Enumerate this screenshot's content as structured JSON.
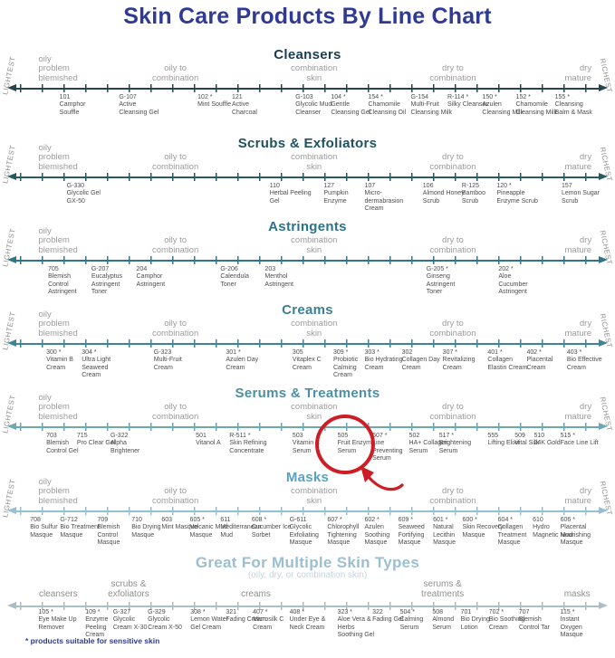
{
  "title": "Skin Care Products By Line Chart",
  "footnote": "* products suitable for sensitive skin",
  "side_labels": {
    "left": "LIGHTEST",
    "right": "RICHEST"
  },
  "skin_zone_labels": [
    {
      "lines": [
        "oily",
        "problem",
        "blemished"
      ],
      "x": 5.2,
      "align": "left"
    },
    {
      "lines": [
        "oily to",
        "combination"
      ],
      "x": 28.0,
      "align": "center"
    },
    {
      "lines": [
        "combination",
        "skin"
      ],
      "x": 51.1,
      "align": "center"
    },
    {
      "lines": [
        "dry to",
        "combination"
      ],
      "x": 74.2,
      "align": "center"
    },
    {
      "lines": [
        "dry",
        "mature"
      ],
      "x": 97.3,
      "align": "right"
    }
  ],
  "annotation": {
    "shape": "circle-with-arrow",
    "target_code": "505",
    "target_name": "Fruit Enzyme Serum",
    "color": "#ce1d24"
  },
  "sections": [
    {
      "heading": "Cleansers",
      "heading_color": "#1a3c50",
      "axis_color": "#24454f",
      "zone_labels_shared": true,
      "has_side_labels": true,
      "products": [
        {
          "code": "101",
          "name": "Camphor Souffle",
          "x": 8.7
        },
        {
          "code": "G-107",
          "name": "Active Cleansing Gel",
          "x": 18.6
        },
        {
          "code": "102 *",
          "name": "Mint Souffle",
          "x": 31.7
        },
        {
          "code": "121",
          "name": "Active Charcoal",
          "x": 37.4
        },
        {
          "code": "G-103",
          "name": "Glycolic Mud Cleanser",
          "x": 48.0
        },
        {
          "code": "104 *",
          "name": "Gentle Cleansing Gel",
          "x": 53.9
        },
        {
          "code": "154 *",
          "name": "Chamomile Cleansing Oil",
          "x": 60.1
        },
        {
          "code": "G-154",
          "name": "Multi-Fruit Cleansing Milk",
          "x": 67.2
        },
        {
          "code": "R-114 *",
          "name": "Silky Cleanser",
          "x": 73.3
        },
        {
          "code": "150 *",
          "name": "Azulen Cleansing Milk",
          "x": 79.1
        },
        {
          "code": "152 *",
          "name": "Chamomile Cleansing Milk",
          "x": 84.7
        },
        {
          "code": "155 *",
          "name": "Cleansing Balm & Mask",
          "x": 91.2
        }
      ]
    },
    {
      "heading": "Scrubs & Exfoliators",
      "heading_color": "#1f5260",
      "axis_color": "#275a63",
      "zone_labels_shared": true,
      "has_side_labels": true,
      "products": [
        {
          "code": "G-330",
          "name": "Glycolic Gel GX-50",
          "x": 9.9
        },
        {
          "code": "110",
          "name": "Herbal Peeling Gel",
          "x": 43.7
        },
        {
          "code": "127",
          "name": "Pumpkin Enzyme",
          "x": 52.7
        },
        {
          "code": "107",
          "name": "Micro-dermabrasion Cream",
          "x": 59.5
        },
        {
          "code": "106",
          "name": "Almond Honey Scrub",
          "x": 69.2
        },
        {
          "code": "R-125",
          "name": "Bamboo Scrub",
          "x": 75.7
        },
        {
          "code": "120 *",
          "name": "Pineapple Enzyme Scrub",
          "x": 81.5
        },
        {
          "code": "157",
          "name": "Lemon Sugar Scrub",
          "x": 92.3
        }
      ]
    },
    {
      "heading": "Astringents",
      "heading_color": "#2b7487",
      "axis_color": "#2f7487",
      "zone_labels_shared": true,
      "has_side_labels": true,
      "products": [
        {
          "code": "705",
          "name": "Blemish Control Astringent",
          "x": 6.8
        },
        {
          "code": "G-207",
          "name": "Eucalyptus Astringent Toner",
          "x": 14.0
        },
        {
          "code": "204",
          "name": "Camphor Astringent",
          "x": 21.5
        },
        {
          "code": "G-206",
          "name": "Calendula Toner",
          "x": 35.5
        },
        {
          "code": "203",
          "name": "Menthol Astringent",
          "x": 42.9
        },
        {
          "code": "G-205 *",
          "name": "Ginseng Astringent Toner",
          "x": 69.8
        },
        {
          "code": "202 *",
          "name": "Aloe Cucumber Astringent",
          "x": 81.8
        }
      ]
    },
    {
      "heading": "Creams",
      "heading_color": "#3b8094",
      "axis_color": "#3f8496",
      "zone_labels_shared": true,
      "has_side_labels": true,
      "products": [
        {
          "code": "300 *",
          "name": "Vitamin B Cream",
          "x": 6.5
        },
        {
          "code": "304 *",
          "name": "Ultra Light Seaweed Cream",
          "x": 12.4
        },
        {
          "code": "G-323",
          "name": "Multi-Fruit Cream",
          "x": 24.4
        },
        {
          "code": "301 *",
          "name": "Azulen Day Cream",
          "x": 36.4
        },
        {
          "code": "305",
          "name": "Vitaplex C Cream",
          "x": 47.5
        },
        {
          "code": "309 *",
          "name": "Probiotic Calming Cream",
          "x": 54.3
        },
        {
          "code": "303 *",
          "name": "Bio Hydrating Cream",
          "x": 59.5
        },
        {
          "code": "302",
          "name": "Collagen Day Cream",
          "x": 65.7
        },
        {
          "code": "307 *",
          "name": "Revitalizing Cream",
          "x": 72.5
        },
        {
          "code": "401 *",
          "name": "Collagen Elastin Cream",
          "x": 80.0
        },
        {
          "code": "402 *",
          "name": "Placental Cream",
          "x": 86.5
        },
        {
          "code": "403 *",
          "name": "Bio Effective Cream",
          "x": 93.2
        }
      ]
    },
    {
      "heading": "Serums & Treatments",
      "heading_color": "#4d90a2",
      "axis_color": "#6aa9b4",
      "zone_labels_shared": true,
      "has_side_labels": true,
      "products": [
        {
          "code": "703",
          "name": "Blemish Control Gel",
          "x": 6.5
        },
        {
          "code": "715",
          "name": "Pro Clear Gel",
          "x": 11.6
        },
        {
          "code": "G-322",
          "name": "Alpha Brightener",
          "x": 17.2
        },
        {
          "code": "501",
          "name": "Vitanol A",
          "x": 31.4
        },
        {
          "code": "R-511 *",
          "name": "Skin Refining Concentrate",
          "x": 37.0
        },
        {
          "code": "503",
          "name": "Vitamin C Serum",
          "x": 47.5
        },
        {
          "code": "505",
          "name": "Fruit Enzyme Serum",
          "x": 55.0
        },
        {
          "code": "507 *",
          "name": "Line Preventing Serum",
          "x": 60.8
        },
        {
          "code": "502",
          "name": "HA+ Collagen Serum",
          "x": 66.9
        },
        {
          "code": "517 *",
          "name": "Brightening Serum",
          "x": 71.9
        },
        {
          "code": "555",
          "name": "Lifting Elixir",
          "x": 80.0
        },
        {
          "code": "509",
          "name": "Vital Silk",
          "x": 84.5
        },
        {
          "code": "510",
          "name": "24K Gold",
          "x": 87.7
        },
        {
          "code": "515 *",
          "name": "Face Line Lift",
          "x": 92.1
        }
      ]
    },
    {
      "heading": "Masks",
      "heading_color": "#57a2c2",
      "axis_color": "#95bfd3",
      "zone_labels_shared": true,
      "has_side_labels": true,
      "products": [
        {
          "code": "708",
          "name": "Bio Sulfur Masque",
          "x": 3.8
        },
        {
          "code": "G-712",
          "name": "Bio Treatment Masque",
          "x": 8.8
        },
        {
          "code": "709",
          "name": "Blemish Control Masque",
          "x": 15.0
        },
        {
          "code": "710",
          "name": "Bio Drying Masque",
          "x": 20.7
        },
        {
          "code": "603",
          "name": "Mint Masque",
          "x": 25.7
        },
        {
          "code": "605 *",
          "name": "Volcanic Mud Masque",
          "x": 30.4
        },
        {
          "code": "611",
          "name": "Mediterranean Mud",
          "x": 35.5
        },
        {
          "code": "608 *",
          "name": "Cucumber Ice Sorbet",
          "x": 40.7
        },
        {
          "code": "G-611",
          "name": "Glycolic Exfoliating Masque",
          "x": 47.0
        },
        {
          "code": "607 *",
          "name": "Chlorophyll Tightening Masque",
          "x": 53.3
        },
        {
          "code": "602 *",
          "name": "Azulen Soothing Masque",
          "x": 59.5
        },
        {
          "code": "609 *",
          "name": "Seaweed Fortifying Masque",
          "x": 65.1
        },
        {
          "code": "601 *",
          "name": "Natural Lecithin Masque",
          "x": 70.9
        },
        {
          "code": "600 *",
          "name": "Skin Recovery Masque",
          "x": 75.8
        },
        {
          "code": "604 *",
          "name": "Collagen Treatment Masque",
          "x": 81.7
        },
        {
          "code": "610",
          "name": "Hydro Magnetic Mud",
          "x": 87.5
        },
        {
          "code": "606 *",
          "name": "Placental Nourishing Masque",
          "x": 92.1
        }
      ]
    },
    {
      "heading": "Great For Multiple Skin Types",
      "heading_color": "#9dbed1",
      "subtitle": "(oily, dry, or combination skin)",
      "subtitle_color": "#c3d4de",
      "axis_color": "#abbdc6",
      "variant": "multi",
      "has_side_labels": false,
      "zone_labels": [
        {
          "lines": [
            "cleansers"
          ],
          "x": 8.5,
          "align": "center"
        },
        {
          "lines": [
            "scrubs &",
            "exfoliators"
          ],
          "x": 20.2,
          "align": "center"
        },
        {
          "lines": [
            "creams"
          ],
          "x": 41.4,
          "align": "center"
        },
        {
          "lines": [
            "serums &",
            "treatments"
          ],
          "x": 72.5,
          "align": "center"
        },
        {
          "lines": [
            "masks"
          ],
          "x": 94.9,
          "align": "center"
        }
      ],
      "products": [
        {
          "code": "105 *",
          "name": "Eye Make Up Remover",
          "x": 5.2
        },
        {
          "code": "109 *",
          "name": "Enzyme Peeling Cream",
          "x": 13.0
        },
        {
          "code": "G-327",
          "name": "Glycolic Cream X-30",
          "x": 17.6
        },
        {
          "code": "G-329",
          "name": "Glycolic Cream X-50",
          "x": 23.4
        },
        {
          "code": "308 *",
          "name": "Lemon Water Gel Cream",
          "x": 30.5
        },
        {
          "code": "321",
          "name": "Fading Cream",
          "x": 36.4
        },
        {
          "code": "407 *",
          "name": "Microsilk C Cream",
          "x": 40.9
        },
        {
          "code": "408 *",
          "name": "Under Eye & Neck Cream",
          "x": 47.0
        },
        {
          "code": "323 *",
          "name": "Aloe Vera & Herbs Soothing Gel",
          "x": 55.0
        },
        {
          "code": "322",
          "name": "Fading Gel",
          "x": 60.8
        },
        {
          "code": "504 *",
          "name": "Calming Serum",
          "x": 65.4
        },
        {
          "code": "508",
          "name": "Almond Serum",
          "x": 70.8
        },
        {
          "code": "701",
          "name": "Bio Drying Lotion",
          "x": 75.5
        },
        {
          "code": "702 *",
          "name": "Bio Soothing Cream",
          "x": 80.2
        },
        {
          "code": "707",
          "name": "Blemish Control Tar",
          "x": 85.2
        },
        {
          "code": "115 *",
          "name": "Instant Oxygen Masque",
          "x": 92.1
        }
      ]
    }
  ]
}
